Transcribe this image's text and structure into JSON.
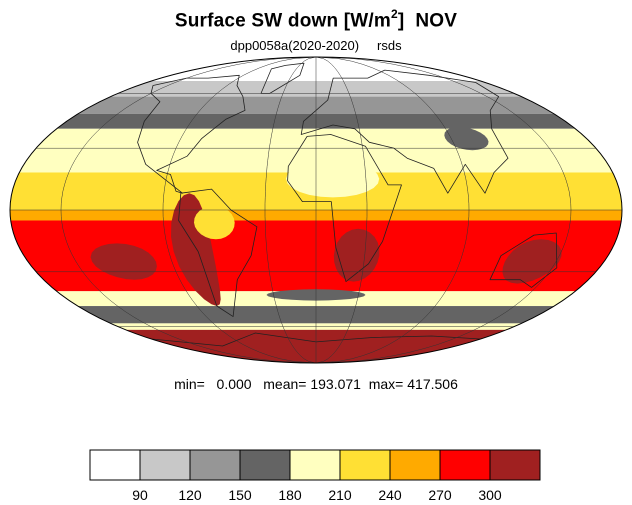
{
  "title": {
    "main": "Surface SW down [W/m",
    "superscript": "2",
    "close": "]",
    "month": "NOV"
  },
  "subtitle": {
    "experiment": "dpp0058a(2020-2020)",
    "variable": "rsds"
  },
  "stats": {
    "min_label": "min=",
    "min_value": "0.000",
    "mean_label": "mean=",
    "mean_value": "193.071",
    "max_label": "max=",
    "max_value": "417.506"
  },
  "colorbar": {
    "colors": [
      "#ffffff",
      "#c8c8c8",
      "#969696",
      "#646464",
      "#ffffc0",
      "#ffe034",
      "#ffaa00",
      "#ff0000",
      "#a02020"
    ],
    "tick_labels": [
      "90",
      "120",
      "150",
      "180",
      "210",
      "240",
      "270",
      "300"
    ]
  },
  "map": {
    "projection": "mollweide",
    "zonal_bands": [
      {
        "lat": [
          68,
          90
        ],
        "level": 0
      },
      {
        "lat": [
          58,
          68
        ],
        "level": 1
      },
      {
        "lat": [
          48,
          58
        ],
        "level": 2
      },
      {
        "lat": [
          40,
          48
        ],
        "level": 3
      },
      {
        "lat": [
          32,
          40
        ],
        "level": 4
      },
      {
        "lat": [
          18,
          32
        ],
        "level": 4
      },
      {
        "lat": [
          0,
          18
        ],
        "level": 5
      },
      {
        "lat": [
          -5,
          0
        ],
        "level": 6
      },
      {
        "lat": [
          -40,
          -5
        ],
        "level": 7
      },
      {
        "lat": [
          -48,
          -40
        ],
        "level": 4
      },
      {
        "lat": [
          -58,
          -48
        ],
        "level": 3
      },
      {
        "lat": [
          -62,
          -58
        ],
        "level": 4
      },
      {
        "lat": [
          -90,
          -62
        ],
        "level": 8
      }
    ],
    "patches": [
      {
        "lon": -75,
        "lat": -20,
        "rlon": 12,
        "rlat": 28,
        "level": 8
      },
      {
        "lon": 25,
        "lat": -22,
        "rlon": 14,
        "rlat": 13,
        "level": 8
      },
      {
        "lon": 135,
        "lat": -25,
        "rlon": 17,
        "rlat": 11,
        "level": 8
      },
      {
        "lon": -120,
        "lat": -25,
        "rlon": 20,
        "rlat": 9,
        "level": 8
      },
      {
        "lon": 10,
        "lat": 15,
        "rlon": 28,
        "rlat": 9,
        "level": 4
      },
      {
        "lon": -60,
        "lat": -6,
        "rlon": 12,
        "rlat": 8,
        "level": 5
      },
      {
        "lon": 0,
        "lat": -42,
        "rlon": 35,
        "rlat": 3,
        "level": 3
      },
      {
        "lon": 100,
        "lat": 35,
        "rlon": 14,
        "rlat": 6,
        "level": 3
      }
    ],
    "continents": [
      {
        "name": "north-america",
        "points": [
          [
            -165,
            65
          ],
          [
            -150,
            70
          ],
          [
            -125,
            70
          ],
          [
            -95,
            72
          ],
          [
            -80,
            65
          ],
          [
            -64,
            58
          ],
          [
            -55,
            50
          ],
          [
            -66,
            45
          ],
          [
            -76,
            35
          ],
          [
            -81,
            26
          ],
          [
            -97,
            19
          ],
          [
            -88,
            17
          ],
          [
            -83,
            9
          ],
          [
            -79,
            8
          ],
          [
            -105,
            22
          ],
          [
            -117,
            33
          ],
          [
            -124,
            44
          ],
          [
            -130,
            55
          ],
          [
            -150,
            60
          ]
        ]
      },
      {
        "name": "south-america",
        "points": [
          [
            -80,
            8
          ],
          [
            -62,
            10
          ],
          [
            -50,
            0
          ],
          [
            -35,
            -8
          ],
          [
            -40,
            -22
          ],
          [
            -52,
            -34
          ],
          [
            -68,
            -54
          ],
          [
            -75,
            -48
          ],
          [
            -72,
            -20
          ],
          [
            -81,
            -5
          ]
        ]
      },
      {
        "name": "africa",
        "points": [
          [
            -17,
            21
          ],
          [
            -6,
            36
          ],
          [
            10,
            37
          ],
          [
            32,
            31
          ],
          [
            43,
            12
          ],
          [
            51,
            12
          ],
          [
            40,
            -15
          ],
          [
            33,
            -26
          ],
          [
            20,
            -35
          ],
          [
            12,
            -18
          ],
          [
            9,
            4
          ],
          [
            -8,
            4
          ],
          [
            -17,
            14
          ]
        ]
      },
      {
        "name": "eurasia",
        "points": [
          [
            -10,
            37
          ],
          [
            -9,
            44
          ],
          [
            0,
            50
          ],
          [
            10,
            56
          ],
          [
            20,
            70
          ],
          [
            60,
            70
          ],
          [
            100,
            76
          ],
          [
            140,
            72
          ],
          [
            170,
            67
          ],
          [
            160,
            58
          ],
          [
            135,
            50
          ],
          [
            122,
            40
          ],
          [
            120,
            25
          ],
          [
            108,
            18
          ],
          [
            100,
            8
          ],
          [
            92,
            22
          ],
          [
            78,
            8
          ],
          [
            72,
            20
          ],
          [
            57,
            25
          ],
          [
            50,
            30
          ],
          [
            35,
            33
          ],
          [
            27,
            40
          ],
          [
            12,
            42
          ]
        ]
      },
      {
        "name": "australia",
        "points": [
          [
            114,
            -22
          ],
          [
            130,
            -12
          ],
          [
            143,
            -11
          ],
          [
            153,
            -28
          ],
          [
            147,
            -38
          ],
          [
            135,
            -34
          ],
          [
            115,
            -34
          ]
        ]
      },
      {
        "name": "greenland",
        "points": [
          [
            -50,
            60
          ],
          [
            -42,
            60
          ],
          [
            -20,
            72
          ],
          [
            -25,
            82
          ],
          [
            -55,
            80
          ],
          [
            -68,
            77
          ]
        ]
      },
      {
        "name": "antarctica",
        "points": [
          [
            -180,
            -68
          ],
          [
            -120,
            -73
          ],
          [
            -60,
            -64
          ],
          [
            0,
            -70
          ],
          [
            60,
            -67
          ],
          [
            120,
            -66
          ],
          [
            180,
            -68
          ]
        ]
      }
    ]
  }
}
